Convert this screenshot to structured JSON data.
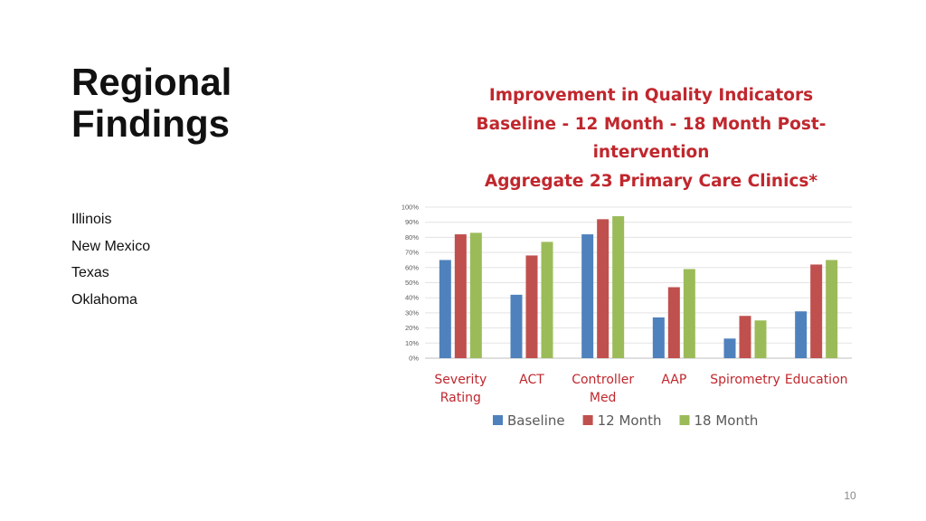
{
  "slide": {
    "title_line1": "Regional",
    "title_line2": "Findings",
    "regions": [
      "Illinois",
      "New Mexico",
      "Texas",
      "Oklahoma"
    ],
    "page_number": "10"
  },
  "chart_data": {
    "type": "bar",
    "title_lines": [
      "Improvement in Quality Indicators",
      "Baseline - 12 Month - 18 Month Post-",
      "intervention",
      "Aggregate 23 Primary Care Clinics*"
    ],
    "categories": [
      [
        "Severity",
        "Rating"
      ],
      [
        "ACT"
      ],
      [
        "Controller",
        "Med"
      ],
      [
        "AAP"
      ],
      [
        "Spirometry"
      ],
      [
        "Education"
      ]
    ],
    "series": [
      {
        "name": "Baseline",
        "color": "#4f81bd",
        "values": [
          65,
          42,
          82,
          27,
          13,
          31
        ]
      },
      {
        "name": "12 Month",
        "color": "#c0504d",
        "values": [
          82,
          68,
          92,
          47,
          28,
          62
        ]
      },
      {
        "name": "18 Month",
        "color": "#9bbb59",
        "values": [
          83,
          77,
          94,
          59,
          25,
          65
        ]
      }
    ],
    "y_ticks": [
      "0%",
      "10%",
      "20%",
      "30%",
      "40%",
      "50%",
      "60%",
      "70%",
      "80%",
      "90%",
      "100%"
    ],
    "ylim": [
      0,
      100
    ],
    "grid": true,
    "legend_position": "bottom",
    "title_color": "#c0272d",
    "label_color": "#c0272d"
  }
}
